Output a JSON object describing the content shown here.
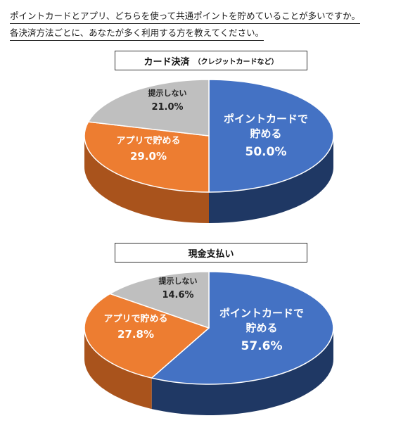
{
  "question": {
    "line1": "ポイントカードとアプリ、どちらを使って共通ポイントを貯めていることが多いですか。",
    "line2": "各決済方法ごとに、あなたが多く利用する方を教えてください。"
  },
  "chart_data": [
    {
      "type": "pie",
      "title": "カード決済",
      "subtitle": "（クレジットカードなど）",
      "slices": [
        {
          "label_lines": [
            "ポイントカードで",
            "貯める"
          ],
          "value_text": "50.0%",
          "value": 50.0,
          "color": "#4472C4",
          "side": "#1F3864"
        },
        {
          "label_lines": [
            "アプリで貯める"
          ],
          "value_text": "29.0%",
          "value": 29.0,
          "color": "#ED7D31",
          "side": "#A9531C"
        },
        {
          "label_lines": [
            "提示しない"
          ],
          "value_text": "21.0%",
          "value": 21.0,
          "color": "#BFBFBF",
          "side": "#7F7F7F"
        }
      ]
    },
    {
      "type": "pie",
      "title": "現金支払い",
      "subtitle": "",
      "slices": [
        {
          "label_lines": [
            "ポイントカードで",
            "貯める"
          ],
          "value_text": "57.6%",
          "value": 57.6,
          "color": "#4472C4",
          "side": "#1F3864"
        },
        {
          "label_lines": [
            "アプリで貯める"
          ],
          "value_text": "27.8%",
          "value": 27.8,
          "color": "#ED7D31",
          "side": "#A9531C"
        },
        {
          "label_lines": [
            "提示しない"
          ],
          "value_text": "14.6%",
          "value": 14.6,
          "color": "#BFBFBF",
          "side": "#7F7F7F"
        }
      ]
    }
  ]
}
